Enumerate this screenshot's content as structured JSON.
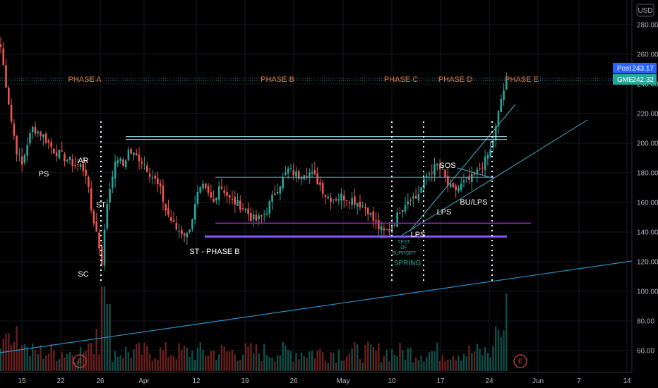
{
  "chart_data": {
    "type": "candlestick",
    "currency": "USD",
    "x_ticks": [
      "15",
      "22",
      "26",
      "Apr",
      "12",
      "19",
      "26",
      "May",
      "10",
      "17",
      "24",
      "Jun",
      "7",
      "14"
    ],
    "y_ticks": [
      60,
      80,
      100,
      120,
      140,
      160,
      180,
      200,
      220,
      240,
      260,
      280
    ],
    "ylim": [
      48,
      296
    ],
    "price_badges": [
      {
        "label": "Post",
        "value": "243.17",
        "color": "#2962ff"
      },
      {
        "label": "GME",
        "value": "242.32",
        "color": "#26a69a"
      }
    ],
    "phases": [
      "PHASE A",
      "PHASE B",
      "PHASE C",
      "PHASE D",
      "PHASE E"
    ],
    "annotations": [
      "PS",
      "AR",
      "ST",
      "SC",
      "ST - PHASE B",
      "SOS",
      "LPS",
      "BU/LPS",
      "LPS"
    ],
    "spring_note": {
      "lines": [
        "TEST",
        "OF",
        "SUPPORT"
      ],
      "label": "SPRING"
    },
    "earnings_marker": "E",
    "levels": {
      "resistance_high": 203,
      "resistance_range": 177,
      "support_purple": 146,
      "support_violet": 137
    },
    "close_path": [
      [
        0,
        265
      ],
      [
        2,
        240
      ],
      [
        4,
        215
      ],
      [
        6,
        195
      ],
      [
        8,
        185
      ],
      [
        10,
        200
      ],
      [
        12,
        210
      ],
      [
        14,
        208
      ],
      [
        16,
        205
      ],
      [
        18,
        200
      ],
      [
        20,
        195
      ],
      [
        22,
        193
      ],
      [
        24,
        190
      ],
      [
        26,
        188
      ],
      [
        28,
        185
      ],
      [
        30,
        185
      ],
      [
        32,
        180
      ],
      [
        34,
        155
      ],
      [
        36,
        140
      ],
      [
        38,
        120
      ],
      [
        40,
        160
      ],
      [
        42,
        180
      ],
      [
        44,
        190
      ],
      [
        46,
        185
      ],
      [
        48,
        195
      ],
      [
        50,
        192
      ],
      [
        52,
        190
      ],
      [
        54,
        186
      ],
      [
        56,
        180
      ],
      [
        58,
        175
      ],
      [
        60,
        168
      ],
      [
        62,
        155
      ],
      [
        64,
        148
      ],
      [
        66,
        142
      ],
      [
        68,
        140
      ],
      [
        70,
        138
      ],
      [
        72,
        150
      ],
      [
        74,
        165
      ],
      [
        76,
        170
      ],
      [
        78,
        165
      ],
      [
        80,
        160
      ],
      [
        82,
        172
      ],
      [
        84,
        168
      ],
      [
        86,
        162
      ],
      [
        88,
        160
      ],
      [
        90,
        158
      ],
      [
        92,
        155
      ],
      [
        94,
        150
      ],
      [
        96,
        148
      ],
      [
        98,
        150
      ],
      [
        100,
        155
      ],
      [
        102,
        163
      ],
      [
        104,
        170
      ],
      [
        106,
        176
      ],
      [
        108,
        182
      ],
      [
        110,
        180
      ],
      [
        112,
        178
      ],
      [
        114,
        181
      ],
      [
        116,
        180
      ],
      [
        118,
        177
      ],
      [
        120,
        172
      ],
      [
        122,
        165
      ],
      [
        124,
        163
      ],
      [
        126,
        163
      ],
      [
        128,
        164
      ],
      [
        130,
        163
      ],
      [
        132,
        162
      ],
      [
        134,
        160
      ],
      [
        136,
        158
      ],
      [
        138,
        155
      ],
      [
        140,
        148
      ],
      [
        142,
        143
      ],
      [
        144,
        140
      ],
      [
        146,
        142
      ],
      [
        148,
        147
      ],
      [
        150,
        155
      ],
      [
        152,
        160
      ],
      [
        154,
        164
      ],
      [
        156,
        163
      ],
      [
        158,
        170
      ],
      [
        160,
        178
      ],
      [
        162,
        182
      ],
      [
        164,
        185
      ],
      [
        166,
        180
      ],
      [
        168,
        172
      ],
      [
        170,
        168
      ],
      [
        172,
        170
      ],
      [
        174,
        173
      ],
      [
        176,
        175
      ],
      [
        178,
        178
      ],
      [
        180,
        183
      ],
      [
        182,
        188
      ],
      [
        184,
        195
      ],
      [
        186,
        210
      ],
      [
        188,
        230
      ],
      [
        190,
        242
      ]
    ]
  }
}
